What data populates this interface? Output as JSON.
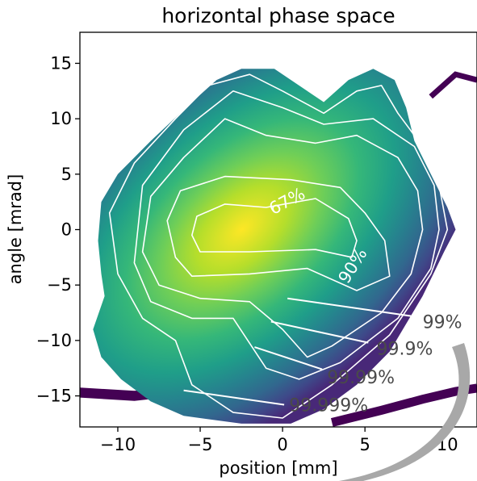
{
  "chart_data": {
    "type": "heatmap",
    "title": "horizontal phase space",
    "xlabel": "position [mm]",
    "ylabel": "angle [mrad]",
    "xlim": [
      -12.3,
      11.8
    ],
    "ylim": [
      -17.8,
      17.8
    ],
    "xticks": [
      -10,
      -5,
      0,
      5,
      10
    ],
    "yticks": [
      -15,
      -10,
      -5,
      0,
      5,
      10,
      15
    ],
    "xtick_labels": [
      "−10",
      "−5",
      "0",
      "5",
      "10"
    ],
    "ytick_labels": [
      "−15",
      "−10",
      "−5",
      "0",
      "5",
      "10",
      "15"
    ],
    "colormap": "viridis",
    "colors": {
      "dark": "#440154",
      "mid": "#21918c",
      "bright": "#fde725",
      "contour": "#ffffff",
      "label": "#4a4a4a"
    },
    "density_center": {
      "x": -1.5,
      "y": -0.3
    },
    "outer_boundary": [
      [
        -10.8,
        -6
      ],
      [
        -11.5,
        -9
      ],
      [
        -11,
        -11.5
      ],
      [
        -9.8,
        -13.5
      ],
      [
        -8,
        -15.5
      ],
      [
        -6,
        -16.8
      ],
      [
        -2.5,
        -17.5
      ],
      [
        0.5,
        -17.5
      ],
      [
        2.5,
        -16.2
      ],
      [
        4.5,
        -14
      ],
      [
        6.5,
        -11
      ],
      [
        8.5,
        -6
      ],
      [
        9.8,
        -2
      ],
      [
        10.5,
        0
      ],
      [
        10,
        2
      ],
      [
        9,
        5
      ],
      [
        8,
        8
      ],
      [
        7.5,
        11
      ],
      [
        6.8,
        13.5
      ],
      [
        5.5,
        14.5
      ],
      [
        4,
        13.5
      ],
      [
        2.5,
        11.5
      ],
      [
        1,
        13
      ],
      [
        -0.5,
        14.5
      ],
      [
        -2.5,
        14.5
      ],
      [
        -4,
        13.5
      ],
      [
        -5.5,
        11.5
      ],
      [
        -8,
        8
      ],
      [
        -10,
        5
      ],
      [
        -11,
        2.5
      ],
      [
        -11.2,
        -1
      ],
      [
        -11,
        -4
      ]
    ],
    "contours": [
      {
        "label": "67%",
        "points": [
          [
            -5.5,
            -0.5
          ],
          [
            -5,
            -2
          ],
          [
            -2,
            -2
          ],
          [
            2,
            -1.8
          ],
          [
            4.2,
            -2.5
          ],
          [
            4.5,
            -1
          ],
          [
            4,
            1
          ],
          [
            2,
            2.8
          ],
          [
            -1,
            2
          ],
          [
            -3.5,
            2.3
          ],
          [
            -5.2,
            1.2
          ]
        ]
      },
      {
        "label": "90%",
        "points": [
          [
            -6.5,
            -2.5
          ],
          [
            -5.5,
            -4.2
          ],
          [
            -2,
            -4
          ],
          [
            1.5,
            -3.5
          ],
          [
            4.5,
            -5.5
          ],
          [
            6.5,
            -4.2
          ],
          [
            6.2,
            -1
          ],
          [
            5,
            1.5
          ],
          [
            3.5,
            3.8
          ],
          [
            0.5,
            4.5
          ],
          [
            -3.5,
            4.8
          ],
          [
            -6.2,
            3.5
          ],
          [
            -7,
            0.8
          ]
        ]
      },
      {
        "label": "99%",
        "points": [
          [
            -8.5,
            -2
          ],
          [
            -7.5,
            -5
          ],
          [
            -5,
            -6.2
          ],
          [
            -2,
            -6.5
          ],
          [
            0,
            -9
          ],
          [
            1.5,
            -11.5
          ],
          [
            3,
            -10.5
          ],
          [
            6,
            -7.5
          ],
          [
            7.8,
            -4
          ],
          [
            8.5,
            0
          ],
          [
            8.2,
            3.5
          ],
          [
            7,
            6.5
          ],
          [
            4.5,
            8.5
          ],
          [
            2,
            7.8
          ],
          [
            -1,
            8.5
          ],
          [
            -3.5,
            10
          ],
          [
            -6,
            6.5
          ],
          [
            -8,
            3
          ]
        ]
      },
      {
        "label": "99.9%",
        "points": [
          [
            -9,
            -3
          ],
          [
            -8,
            -6.5
          ],
          [
            -5.5,
            -8
          ],
          [
            -3,
            -8
          ],
          [
            -1,
            -12.5
          ],
          [
            1,
            -13.5
          ],
          [
            3.5,
            -12
          ],
          [
            7,
            -8
          ],
          [
            9,
            -3.5
          ],
          [
            9.5,
            0
          ],
          [
            9.2,
            4
          ],
          [
            8,
            7.5
          ],
          [
            5.5,
            10
          ],
          [
            2.5,
            9.5
          ],
          [
            0,
            11
          ],
          [
            -3,
            12.5
          ],
          [
            -6,
            9
          ],
          [
            -8.5,
            4
          ]
        ]
      },
      {
        "label": "99.99%",
        "points": [
          [
            -10,
            -4
          ],
          [
            -8.5,
            -8
          ],
          [
            -6.5,
            -10
          ],
          [
            -5.5,
            -14
          ],
          [
            -3,
            -16.5
          ],
          [
            0,
            -17
          ],
          [
            3,
            -14
          ],
          [
            6.5,
            -9.5
          ],
          [
            9,
            -4
          ],
          [
            10,
            0
          ],
          [
            9.5,
            4
          ],
          [
            8.5,
            7.5
          ],
          [
            7,
            10.5
          ],
          [
            6,
            13
          ],
          [
            4.5,
            12.5
          ],
          [
            2.5,
            10.5
          ],
          [
            0,
            12.5
          ],
          [
            -2,
            14
          ],
          [
            -4.5,
            13
          ],
          [
            -6.5,
            10
          ],
          [
            -9,
            6
          ],
          [
            -10.5,
            1.5
          ]
        ]
      }
    ],
    "contour_labels": [
      {
        "text": "67%",
        "x": 0.3,
        "y": 2.5,
        "rotation": -28
      },
      {
        "text": "90%",
        "x": 4.3,
        "y": -3.3,
        "rotation": -58
      }
    ],
    "annotations": [
      {
        "text": "99%",
        "text_x": 8.5,
        "text_y": -8.3,
        "line_from": [
          0.3,
          -6.2
        ],
        "line_to": [
          7.8,
          -7.8
        ]
      },
      {
        "text": "99.9%",
        "text_x": 5.7,
        "text_y": -10.7,
        "line_from": [
          -0.7,
          -8.3
        ],
        "line_to": [
          5.2,
          -10.2
        ]
      },
      {
        "text": "99.99%",
        "text_x": 2.7,
        "text_y": -13.3,
        "line_from": [
          -1.7,
          -10.6
        ],
        "line_to": [
          2.4,
          -12.6
        ]
      },
      {
        "text": "99.999%",
        "text_x": 0.4,
        "text_y": -15.8,
        "line_from": [
          -6,
          -14.5
        ],
        "line_to": [
          0.1,
          -15.8
        ]
      }
    ],
    "tails": [
      {
        "points": [
          [
            -12.3,
            -14.7
          ],
          [
            -9,
            -15
          ],
          [
            -6,
            -14.5
          ],
          [
            -3,
            -14.8
          ],
          [
            -1,
            -15.5
          ],
          [
            1,
            -16
          ]
        ],
        "width": 0.9
      },
      {
        "points": [
          [
            3,
            -17.4
          ],
          [
            6,
            -16.3
          ],
          [
            8.5,
            -15.3
          ],
          [
            10.5,
            -14.6
          ],
          [
            11.8,
            -14.3
          ]
        ],
        "width": 0.8
      },
      {
        "points": [
          [
            9,
            12
          ],
          [
            10.5,
            14
          ],
          [
            11.8,
            13.5
          ]
        ],
        "width": 0.5
      }
    ]
  }
}
